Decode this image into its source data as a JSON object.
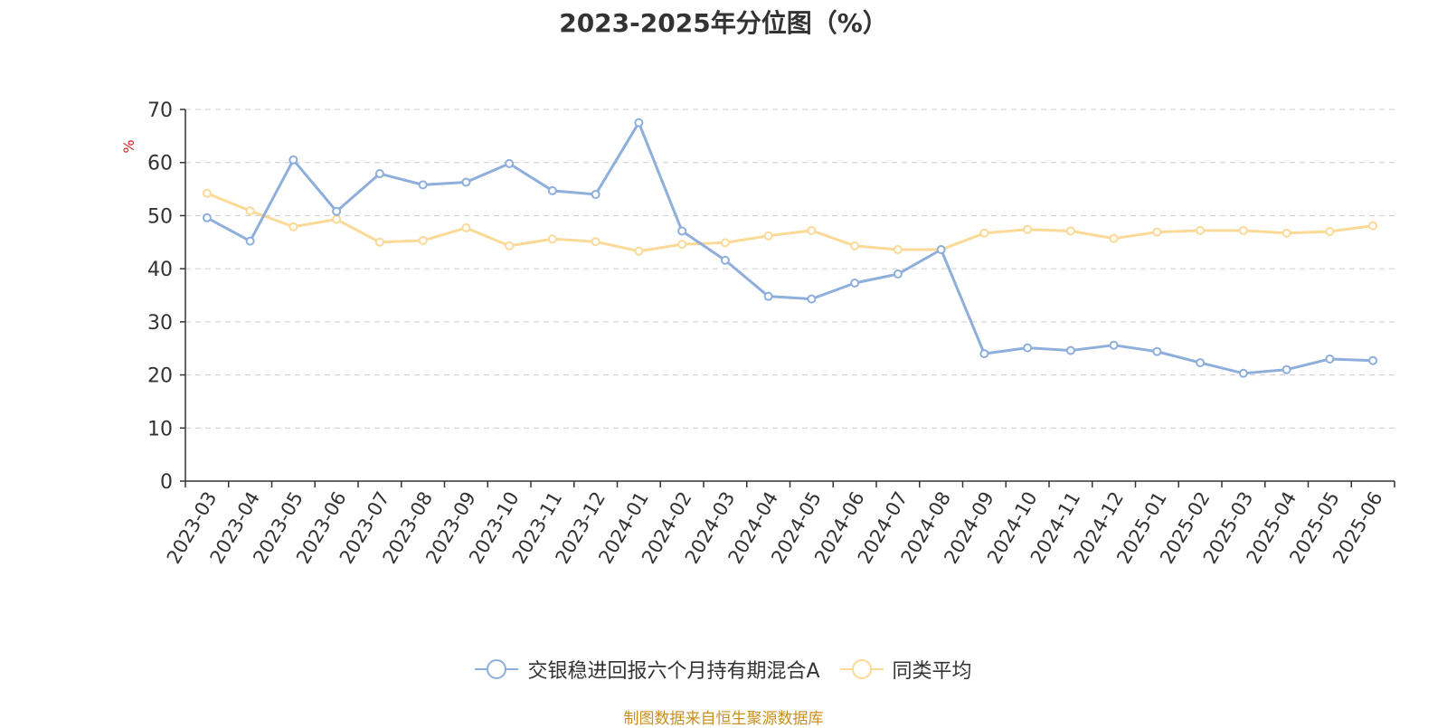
{
  "chart_data": {
    "type": "line",
    "title": "2023-2025年分位图（%）",
    "ylabel": "%",
    "ylim": [
      0,
      70
    ],
    "yticks": [
      0,
      10,
      20,
      30,
      40,
      50,
      60,
      70
    ],
    "grid": true,
    "legend_position": "bottom-center",
    "categories": [
      "2023-03",
      "2023-04",
      "2023-05",
      "2023-06",
      "2023-07",
      "2023-08",
      "2023-09",
      "2023-10",
      "2023-11",
      "2023-12",
      "2024-01",
      "2024-02",
      "2024-03",
      "2024-04",
      "2024-05",
      "2024-06",
      "2024-07",
      "2024-08",
      "2024-09",
      "2024-10",
      "2024-11",
      "2024-12",
      "2025-01",
      "2025-02",
      "2025-03",
      "2025-04",
      "2025-05",
      "2025-06"
    ],
    "series": [
      {
        "name": "交银稳进回报六个月持有期混合A",
        "color": "#8eaedb",
        "values": [
          49.6,
          45.2,
          60.5,
          50.8,
          57.9,
          55.8,
          56.3,
          59.8,
          54.7,
          54.0,
          67.5,
          47.1,
          41.6,
          34.8,
          34.3,
          37.3,
          39.0,
          43.6,
          24.0,
          25.1,
          24.6,
          25.6,
          24.4,
          22.3,
          20.3,
          21.0,
          23.0,
          22.7
        ]
      },
      {
        "name": "同类平均",
        "color": "#fbd997",
        "values": [
          54.2,
          50.9,
          47.9,
          49.3,
          45.0,
          45.3,
          47.7,
          44.3,
          45.6,
          45.1,
          43.3,
          44.6,
          44.9,
          46.2,
          47.2,
          44.3,
          43.6,
          43.6,
          46.7,
          47.4,
          47.1,
          45.7,
          46.9,
          47.2,
          47.2,
          46.7,
          47.0,
          48.1
        ]
      }
    ]
  },
  "source_text": "制图数据来自恒生聚源数据库"
}
